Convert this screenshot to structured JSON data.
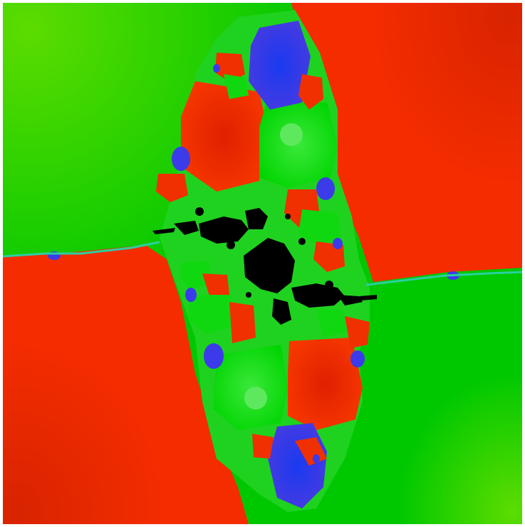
{
  "image": {
    "kind": "newton-fractal",
    "background_color": "#ffffff",
    "palette": {
      "green": "#00d000",
      "green_light": "#58dc00",
      "red": "#f02800",
      "red_dark": "#d82800",
      "blue": "#3b3bea",
      "black": "#000000"
    }
  }
}
